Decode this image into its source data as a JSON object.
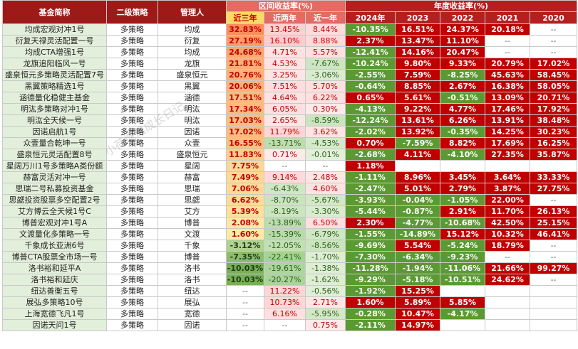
{
  "headers": {
    "fund_name": "基金简称",
    "strategy": "二级策略",
    "manager": "管理人",
    "region_group": "区间收益率(%)",
    "year_group": "年度收益率(%)",
    "r3y": "近三年",
    "r2y": "近两年",
    "r1y": "近一年",
    "y2024": "2024年",
    "y2023": "2023",
    "y2022": "2022",
    "y2021": "2021",
    "y2020": "2020"
  },
  "colors": {
    "header_red": "#9e1a18",
    "header_salmon": "#e36b63",
    "positive_red": "#c00000",
    "negative_green": "#5b9a32",
    "name_green": "#e2efda"
  },
  "rows": [
    {
      "name": "均成宏观对冲1号",
      "strategy": "多策略",
      "manager": "均成",
      "r3": "32.83%",
      "r2": "13.45%",
      "r1": "8.44%",
      "y24": "-10.35%",
      "y23": "16.51%",
      "y22": "24.37%",
      "y21": "20.18%",
      "y20": "--"
    },
    {
      "name": "衍复天禄灵活配置一号",
      "strategy": "多策略",
      "manager": "衍复",
      "r3": "27.19%",
      "r2": "16.10%",
      "r1": "8.88%",
      "y24": "2.37%",
      "y23": "13.47%",
      "y22": "11.10%",
      "y21": "--",
      "y20": "--"
    },
    {
      "name": "均成CTA增强1号",
      "strategy": "多策略",
      "manager": "均成",
      "r3": "24.68%",
      "r2": "4.71%",
      "r1": "5.57%",
      "y24": "-12.41%",
      "y23": "14.16%",
      "y22": "20.47%",
      "y21": "--",
      "y20": "--"
    },
    {
      "name": "龙旗追阳临风一号",
      "strategy": "多策略",
      "manager": "龙旗",
      "r3": "21.81%",
      "r2": "4.53%",
      "r1": "-7.67%",
      "y24": "-10.24%",
      "y23": "9.80%",
      "y22": "9.33%",
      "y21": "20.79%",
      "y20": "17.02%"
    },
    {
      "name": "盛泉恒元多策略灵活配置7号",
      "strategy": "多策略",
      "manager": "盛泉恒元",
      "r3": "20.76%",
      "r2": "3.25%",
      "r1": "-3.06%",
      "y24": "-2.55%",
      "y23": "7.59%",
      "y22": "-8.25%",
      "y21": "45.63%",
      "y20": "58.45%"
    },
    {
      "name": "黑翼策略精选1号",
      "strategy": "多策略",
      "manager": "黑翼",
      "r3": "20.06%",
      "r2": "7.51%",
      "r1": "5.70%",
      "y24": "-0.64%",
      "y23": "8.85%",
      "y22": "2.67%",
      "y21": "16.38%",
      "y20": "58.05%"
    },
    {
      "name": "涵德量化稳健主基金",
      "strategy": "多策略",
      "manager": "涵德",
      "r3": "17.51%",
      "r2": "4.64%",
      "r1": "6.22%",
      "y24": "0.65%",
      "y23": "5.61%",
      "y22": "-0.51%",
      "y21": "13.09%",
      "y20": "20.71%"
    },
    {
      "name": "明汯多策略对冲1号",
      "strategy": "多策略",
      "manager": "明汯",
      "r3": "17.34%",
      "r2": "6.05%",
      "r1": "0.30%",
      "y24": "-4.13%",
      "y23": "9.22%",
      "y22": "4.77%",
      "y21": "17.46%",
      "y20": "17.92%"
    },
    {
      "name": "明汯全天候一号",
      "strategy": "多策略",
      "manager": "明汯",
      "r3": "17.03%",
      "r2": "2.65%",
      "r1": "-8.59%",
      "y24": "-12.24%",
      "y23": "13.61%",
      "y22": "6.26%",
      "y21": "13.91%",
      "y20": "38.48%"
    },
    {
      "name": "因诺启航1号",
      "strategy": "多策略",
      "manager": "因诺",
      "r3": "17.02%",
      "r2": "11.79%",
      "r1": "3.62%",
      "y24": "-2.02%",
      "y23": "13.92%",
      "y22": "-0.35%",
      "y21": "14.25%",
      "y20": "30.23%"
    },
    {
      "name": "众壹量合乾坤一号",
      "strategy": "多策略",
      "manager": "众壹",
      "r3": "16.55%",
      "r2": "-13.71%",
      "r1": "-4.53%",
      "y24": "0.70%",
      "y23": "-7.59%",
      "y22": "8.82%",
      "y21": "17.69%",
      "y20": "16.25%"
    },
    {
      "name": "盛泉恒元灵活配置8号",
      "strategy": "多策略",
      "manager": "盛泉恒元",
      "r3": "11.83%",
      "r2": "0.71%",
      "r1": "-0.01%",
      "y24": "-2.68%",
      "y23": "4.11%",
      "y22": "-4.10%",
      "y21": "27.35%",
      "y20": "35.87%"
    },
    {
      "name": "星阔万川1号多策略A类份额",
      "strategy": "多策略",
      "manager": "星阔",
      "r3": "7.75%",
      "r2": "--",
      "r1": "--",
      "y24": "1.18%",
      "y23": "",
      "y22": "",
      "y21": "",
      "y20": ""
    },
    {
      "name": "赫富灵活对冲一号",
      "strategy": "多策略",
      "manager": "赫富",
      "r3": "7.49%",
      "r2": "9.14%",
      "r1": "2.48%",
      "y24": "-1.11%",
      "y23": "8.96%",
      "y22": "3.45%",
      "y21": "3.64%",
      "y20": "33.33%"
    },
    {
      "name": "思瑞二号私募投资基金",
      "strategy": "多策略",
      "manager": "思瑞",
      "r3": "7.06%",
      "r2": "-6.43%",
      "r1": "4.60%",
      "y24": "-2.47%",
      "y23": "5.01%",
      "y22": "2.79%",
      "y21": "3.87%",
      "y20": "27.75%"
    },
    {
      "name": "思勰投资股票多空配置2号",
      "strategy": "多策略",
      "manager": "思勰",
      "r3": "6.62%",
      "r2": "-8.70%",
      "r1": "-5.67%",
      "y24": "-3.93%",
      "y23": "-0.04%",
      "y22": "-1.05%",
      "y21": "22.00%",
      "y20": "--"
    },
    {
      "name": "艾方博云全天候1号C",
      "strategy": "多策略",
      "manager": "艾方",
      "r3": "5.39%",
      "r2": "-8.19%",
      "r1": "-3.30%",
      "y24": "-5.44%",
      "y23": "-0.87%",
      "y22": "2.91%",
      "y21": "11.70%",
      "y20": "26.13%"
    },
    {
      "name": "博普宏观对冲1号A",
      "strategy": "多策略",
      "manager": "博普",
      "r3": "2.08%",
      "r2": "-13.89%",
      "r1": "6.50%",
      "y24": "2.30%",
      "y23": "-4.77%",
      "y22": "-10.68%",
      "y21": "42.50%",
      "y20": "25.15%"
    },
    {
      "name": "文渡量化多策略一号",
      "strategy": "多策略",
      "manager": "文渡",
      "r3": "1.60%",
      "r2": "-15.39%",
      "r1": "-6.79%",
      "y24": "-1.55%",
      "y23": "-14.89%",
      "y22": "15.12%",
      "y21": "10.32%",
      "y20": "46.41%"
    },
    {
      "name": "千象成长亚洲6号",
      "strategy": "多策略",
      "manager": "千象",
      "r3": "-3.12%",
      "r2": "-12.05%",
      "r1": "-8.56%",
      "y24": "-9.69%",
      "y23": "5.54%",
      "y22": "-5.24%",
      "y21": "18.79%",
      "y20": "--"
    },
    {
      "name": "博普CTA股票全市场一号",
      "strategy": "多策略",
      "manager": "博普",
      "r3": "-7.35%",
      "r2": "-22.41%",
      "r1": "-1.70%",
      "y24": "-7.30%",
      "y23": "-6.34%",
      "y22": "-9.23%",
      "y21": "--",
      "y20": "--"
    },
    {
      "name": "洛书裕和延平A",
      "strategy": "多策略",
      "manager": "洛书",
      "r3": "-10.03%",
      "r2": "-19.61%",
      "r1": "-1.38%",
      "y24": "-11.28%",
      "y23": "-1.94%",
      "y22": "-11.06%",
      "y21": "21.66%",
      "y20": "99.27%"
    },
    {
      "name": "洛书裕和延庆",
      "strategy": "多策略",
      "manager": "洛书",
      "r3": "-10.03%",
      "r2": "-20.27%",
      "r1": "-1.62%",
      "y24": "-9.29%",
      "y23": "-5.18%",
      "y22": "-10.51%",
      "y21": "24.62%",
      "y20": "--"
    },
    {
      "name": "纽达善衡五号",
      "strategy": "多策略",
      "manager": "纽达",
      "r3": "--",
      "r2": "11.22%",
      "r1": "-0.56%",
      "y24": "-1.92%",
      "y23": "15.25%",
      "y22": "",
      "y21": "",
      "y20": ""
    },
    {
      "name": "展弘多策略10号",
      "strategy": "多策略",
      "manager": "展弘",
      "r3": "--",
      "r2": "10.73%",
      "r1": "2.71%",
      "y24": "1.60%",
      "y23": "5.89%",
      "y22": "5.85%",
      "y21": "",
      "y20": ""
    },
    {
      "name": "上海宽德飞凡1号",
      "strategy": "多策略",
      "manager": "宽德",
      "r3": "--",
      "r2": "6.16%",
      "r1": "-5.95%",
      "y24": "-0.28%",
      "y23": "10.47%",
      "y22": "-4.17%",
      "y21": "",
      "y20": ""
    },
    {
      "name": "因诺天问1号",
      "strategy": "多策略",
      "manager": "因诺",
      "r3": "--",
      "r2": "--",
      "r1": "0.75%",
      "y24": "-2.11%",
      "y23": "14.97%",
      "y22": "",
      "y21": "",
      "y20": ""
    }
  ]
}
